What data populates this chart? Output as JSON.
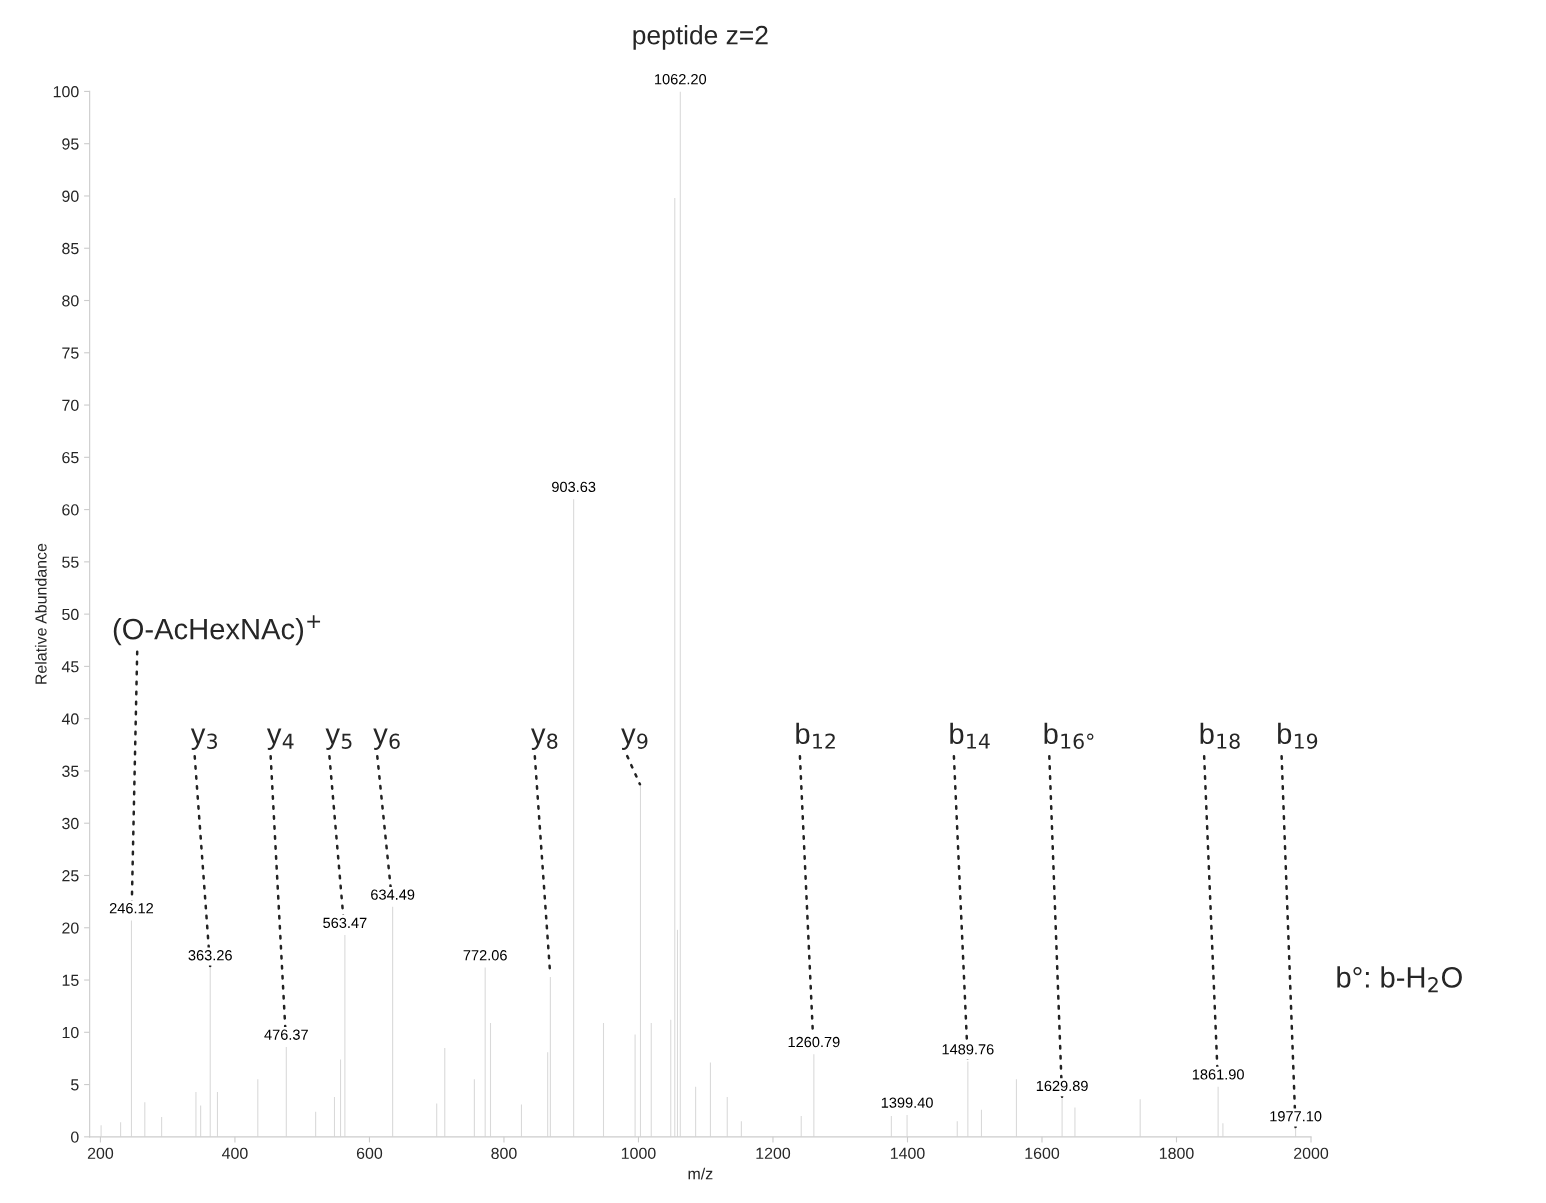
{
  "chart_data": {
    "type": "bar",
    "title": "peptide z=2",
    "xlabel": "m/z",
    "ylabel": "Relative Abundance",
    "xlim": [
      184,
      2000
    ],
    "xticks": [
      200,
      400,
      600,
      800,
      1000,
      1200,
      1400,
      1600,
      1800,
      2000
    ],
    "ylim": [
      0,
      100
    ],
    "yticks": [
      0,
      5,
      10,
      15,
      20,
      25,
      30,
      35,
      40,
      45,
      50,
      55,
      60,
      65,
      70,
      75,
      80,
      85,
      90,
      95,
      100
    ],
    "x": [
      201,
      230,
      246.12,
      266,
      291,
      342,
      349,
      363.26,
      374,
      434,
      476.37,
      520,
      548,
      557,
      563.47,
      634.49,
      700,
      712,
      756,
      772.06,
      780,
      826,
      865,
      869,
      903.63,
      948,
      995,
      1003,
      1019,
      1048,
      1054,
      1058,
      1062.2,
      1085,
      1107,
      1132,
      1153,
      1242,
      1260.79,
      1376,
      1399.4,
      1474,
      1489.76,
      1510,
      1562,
      1629.89,
      1649,
      1746,
      1861.9,
      1869,
      1977.1
    ],
    "series": [
      {
        "color": "#d9d9d9",
        "values": [
          1.1,
          1.4,
          20.7,
          3.3,
          1.9,
          4.3,
          3.0,
          16.2,
          4.3,
          5.5,
          8.6,
          2.4,
          3.8,
          7.4,
          19.3,
          22.0,
          3.2,
          8.5,
          5.5,
          16.2,
          10.9,
          3.1,
          8.1,
          15.3,
          61.0,
          10.9,
          9.8,
          33.6,
          10.9,
          11.2,
          89.8,
          19.8,
          100,
          4.8,
          7.1,
          3.8,
          1.5,
          2.0,
          7.9,
          2.0,
          2.1,
          1.5,
          7.2,
          2.6,
          5.5,
          3.7,
          2.8,
          3.6,
          4.8,
          1.3,
          0.8
        ]
      }
    ],
    "annotations": [
      {
        "text": "246.12",
        "x": 246.12,
        "y": 20.7
      },
      {
        "text": "363.26",
        "x": 363.26,
        "y": 16.2
      },
      {
        "text": "476.37",
        "x": 476.37,
        "y": 8.6
      },
      {
        "text": "563.47",
        "x": 563.47,
        "y": 19.3
      },
      {
        "text": "634.49",
        "x": 634.49,
        "y": 22.0
      },
      {
        "text": "772.06",
        "x": 772.06,
        "y": 16.2
      },
      {
        "text": "903.63",
        "x": 903.63,
        "y": 61.0
      },
      {
        "text": "1062.20",
        "x": 1062.2,
        "y": 100
      },
      {
        "text": "1260.79",
        "x": 1260.79,
        "y": 7.9
      },
      {
        "text": "1399.40",
        "x": 1399.4,
        "y": 2.1
      },
      {
        "text": "1489.76",
        "x": 1489.76,
        "y": 7.2
      },
      {
        "text": "1629.89",
        "x": 1629.89,
        "y": 3.7
      },
      {
        "text": "1861.90",
        "x": 1861.9,
        "y": 4.8
      },
      {
        "text": "1977.10",
        "x": 1977.1,
        "y": 0.8
      },
      {
        "text": "(O-AcHexNAc)$^{+}$",
        "x": 246.12,
        "y": 20.7
      },
      {
        "text": "y$_{3}$",
        "x": 363.26,
        "y": 16.2
      },
      {
        "text": "y$_{4}$",
        "x": 476.37,
        "y": 8.6
      },
      {
        "text": "y$_{5}$",
        "x": 563.47,
        "y": 19.3
      },
      {
        "text": "y$_{6}$",
        "x": 634.49,
        "y": 22.0
      },
      {
        "text": "y$_{8}$",
        "x": 869,
        "y": 15.3
      },
      {
        "text": "y$_{9}$",
        "x": 1003,
        "y": 33.6
      },
      {
        "text": "b$_{12}$",
        "x": 1260.79,
        "y": 7.9
      },
      {
        "text": "b$_{14}$",
        "x": 1489.76,
        "y": 7.2
      },
      {
        "text": "b$_{16°}$",
        "x": 1629.89,
        "y": 3.7
      },
      {
        "text": "b$_{18}$",
        "x": 1861.9,
        "y": 4.8
      },
      {
        "text": "b$_{19}$",
        "x": 1977.1,
        "y": 0.8
      },
      "b°: b-H$_{2}$O"
    ]
  }
}
